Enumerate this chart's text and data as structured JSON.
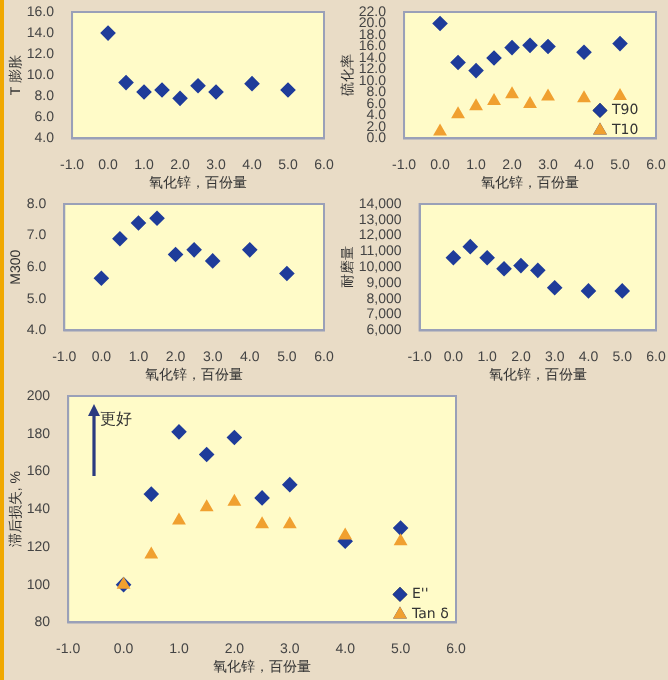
{
  "chart_data": [
    {
      "type": "scatter",
      "xlabel": "氧化锌，百份量",
      "ylabel": "T 膨胀",
      "x": [
        0,
        0.5,
        1,
        1.5,
        2,
        2.5,
        3,
        4,
        5
      ],
      "xlim": [
        -1,
        6
      ],
      "xticks": [
        {
          "value": -1,
          "label": "-1.0"
        },
        {
          "value": 0,
          "label": "0.0"
        },
        {
          "value": 1,
          "label": "1.0"
        },
        {
          "value": 2,
          "label": "2.0"
        },
        {
          "value": 3,
          "label": "3.0"
        },
        {
          "value": 4,
          "label": "4.0"
        },
        {
          "value": 5,
          "label": "5.0"
        },
        {
          "value": 6,
          "label": "6.0"
        }
      ],
      "ylim": [
        4,
        16
      ],
      "yticks": [
        {
          "value": 4,
          "label": "4.0"
        },
        {
          "value": 6,
          "label": "6.0"
        },
        {
          "value": 8,
          "label": "8.0"
        },
        {
          "value": 10,
          "label": "10.0"
        },
        {
          "value": 12,
          "label": "12.0"
        },
        {
          "value": 14,
          "label": "14.0"
        },
        {
          "value": 16,
          "label": "16.0"
        }
      ],
      "marker": "diamond",
      "grid": false,
      "legend": false,
      "series": [
        {
          "color": "#1f3c9a",
          "values": [
            14,
            9.3,
            8.4,
            8.6,
            7.8,
            9,
            8.4,
            9.2,
            8.6
          ]
        }
      ]
    },
    {
      "type": "scatter",
      "xlabel": "氧化锌，百份量",
      "ylabel": "硫化率",
      "x": [
        0,
        0.5,
        1,
        1.5,
        2,
        2.5,
        3,
        4,
        5
      ],
      "xlim": [
        -1,
        6
      ],
      "xticks": [
        {
          "value": -1,
          "label": "-1.0"
        },
        {
          "value": 0,
          "label": "0.0"
        },
        {
          "value": 1,
          "label": "1.0"
        },
        {
          "value": 2,
          "label": "2.0"
        },
        {
          "value": 3,
          "label": "3.0"
        },
        {
          "value": 4,
          "label": "4.0"
        },
        {
          "value": 5,
          "label": "5.0"
        },
        {
          "value": 6,
          "label": "6.0"
        }
      ],
      "ylim": [
        0,
        22
      ],
      "yticks": [
        {
          "value": 0,
          "label": "0.0"
        },
        {
          "value": 2,
          "label": "2.0"
        },
        {
          "value": 4,
          "label": "4.0"
        },
        {
          "value": 6,
          "label": "6.0"
        },
        {
          "value": 8,
          "label": "8.0"
        },
        {
          "value": 10,
          "label": "10.0"
        },
        {
          "value": 12,
          "label": "12.0"
        },
        {
          "value": 14,
          "label": "14.0"
        },
        {
          "value": 16,
          "label": "16.0"
        },
        {
          "value": 18,
          "label": "18.0"
        },
        {
          "value": 20,
          "label": "20.0"
        },
        {
          "value": 22,
          "label": "22.0"
        }
      ],
      "grid": false,
      "legend": "bottom right",
      "series": [
        {
          "name": "T90",
          "color": "#1f3c9a",
          "marker": "diamond",
          "values": [
            20,
            13.2,
            11.8,
            14,
            15.8,
            16.2,
            16,
            15,
            16.5
          ]
        },
        {
          "name": "T10",
          "color": "#f0a030",
          "marker": "triangle",
          "values": [
            1.2,
            4.2,
            5.6,
            6.5,
            7.7,
            6,
            7.3,
            7,
            7.4
          ]
        }
      ]
    },
    {
      "type": "scatter",
      "xlabel": "氧化锌，百份量",
      "ylabel": "M300",
      "x": [
        0,
        0.5,
        1,
        1.5,
        2,
        2.5,
        3,
        4,
        5
      ],
      "xlim": [
        -1,
        6
      ],
      "xticks": [
        {
          "value": -1,
          "label": "-1.0"
        },
        {
          "value": 0,
          "label": "0.0"
        },
        {
          "value": 1,
          "label": "1.0"
        },
        {
          "value": 2,
          "label": "2.0"
        },
        {
          "value": 3,
          "label": "3.0"
        },
        {
          "value": 4,
          "label": "4.0"
        },
        {
          "value": 5,
          "label": "5.0"
        },
        {
          "value": 6,
          "label": "6.0"
        }
      ],
      "ylim": [
        4,
        8
      ],
      "yticks": [
        {
          "value": 4,
          "label": "4.0"
        },
        {
          "value": 5,
          "label": "5.0"
        },
        {
          "value": 6,
          "label": "6.0"
        },
        {
          "value": 7,
          "label": "7.0"
        },
        {
          "value": 8,
          "label": "8.0"
        }
      ],
      "marker": "diamond",
      "grid": false,
      "legend": false,
      "series": [
        {
          "color": "#1f3c9a",
          "values": [
            5.65,
            6.9,
            7.4,
            7.55,
            6.4,
            6.55,
            6.2,
            6.55,
            5.8
          ]
        }
      ]
    },
    {
      "type": "scatter",
      "xlabel": "氧化锌，百份量",
      "ylabel": "耐磨量",
      "x": [
        0,
        0.5,
        1,
        1.5,
        2,
        2.5,
        3,
        4,
        5
      ],
      "xlim": [
        -1,
        6
      ],
      "xticks": [
        {
          "value": -1,
          "label": "-1.0"
        },
        {
          "value": 0,
          "label": "0.0"
        },
        {
          "value": 1,
          "label": "1.0"
        },
        {
          "value": 2,
          "label": "2.0"
        },
        {
          "value": 3,
          "label": "3.0"
        },
        {
          "value": 4,
          "label": "4.0"
        },
        {
          "value": 5,
          "label": "5.0"
        },
        {
          "value": 6,
          "label": "6.0"
        }
      ],
      "ylim": [
        6000,
        14000
      ],
      "yticks": [
        {
          "value": 6000,
          "label": "6,000"
        },
        {
          "value": 7000,
          "label": "7,000"
        },
        {
          "value": 8000,
          "label": "8,000"
        },
        {
          "value": 9000,
          "label": "9,000"
        },
        {
          "value": 10000,
          "label": "10,000"
        },
        {
          "value": 11000,
          "label": "11,000"
        },
        {
          "value": 12000,
          "label": "12,000"
        },
        {
          "value": 13000,
          "label": "13,000"
        },
        {
          "value": 14000,
          "label": "14,000"
        }
      ],
      "marker": "diamond",
      "grid": false,
      "legend": false,
      "series": [
        {
          "color": "#1f3c9a",
          "values": [
            10600,
            11300,
            10600,
            9900,
            10100,
            9800,
            8700,
            8500,
            8500
          ]
        }
      ]
    },
    {
      "type": "scatter",
      "xlabel": "氧化锌，百份量",
      "ylabel": "滞后损失, %",
      "annotations": [
        "更好"
      ],
      "x": [
        0,
        0.5,
        1,
        1.5,
        2,
        2.5,
        3,
        4,
        5
      ],
      "xlim": [
        -1,
        6
      ],
      "xticks": [
        {
          "value": -1,
          "label": "-1.0"
        },
        {
          "value": 0,
          "label": "0.0"
        },
        {
          "value": 1,
          "label": "1.0"
        },
        {
          "value": 2,
          "label": "2.0"
        },
        {
          "value": 3,
          "label": "3.0"
        },
        {
          "value": 4,
          "label": "4.0"
        },
        {
          "value": 5,
          "label": "5.0"
        },
        {
          "value": 6,
          "label": "6.0"
        }
      ],
      "ylim": [
        80,
        200
      ],
      "yticks": [
        80,
        100,
        120,
        140,
        160,
        180,
        200
      ],
      "grid": false,
      "legend": "bottom right",
      "series": [
        {
          "name": "E''",
          "color": "#1f3c9a",
          "marker": "diamond",
          "values": [
            100,
            148,
            181,
            169,
            178,
            146,
            153,
            123,
            130
          ]
        },
        {
          "name": "Tan δ",
          "color": "#f0a030",
          "marker": "triangle",
          "values": [
            100,
            116,
            134,
            141,
            144,
            132,
            132,
            126,
            123
          ]
        }
      ]
    }
  ]
}
